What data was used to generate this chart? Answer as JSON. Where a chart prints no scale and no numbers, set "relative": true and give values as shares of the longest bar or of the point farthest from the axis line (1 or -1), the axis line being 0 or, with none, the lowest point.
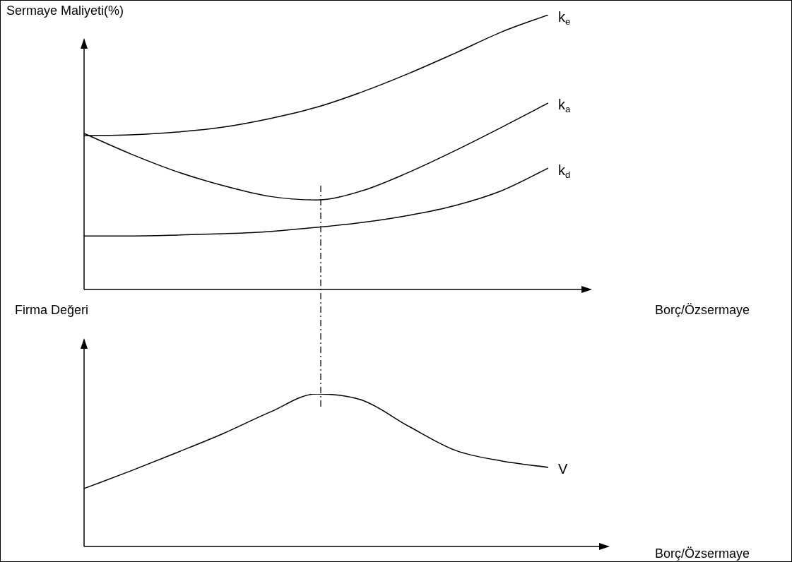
{
  "chart_data": [
    {
      "type": "line",
      "ylabel": "Sermaye Maliyeti(%)",
      "xlabel": "Borç/Özsermaye",
      "relative": true,
      "categories": [
        null,
        null,
        null,
        null,
        null,
        null,
        null,
        null,
        null,
        null,
        null
      ],
      "series": [
        {
          "name": "k$_{e}$",
          "color": "#000000",
          "values": [
            0.56,
            0.563,
            0.573,
            0.591,
            0.622,
            0.663,
            0.72,
            0.787,
            0.861,
            0.938,
            1
          ]
        },
        {
          "name": "k$_{a}$",
          "color": "#000000",
          "values": [
            0.568,
            0.494,
            0.429,
            0.378,
            0.339,
            0.326,
            0.36,
            0.427,
            0.506,
            0.591,
            0.679
          ]
        },
        {
          "name": "k$_{d}$",
          "color": "#000000",
          "values": [
            0.195,
            0.195,
            0.198,
            0.203,
            0.211,
            0.226,
            0.244,
            0.27,
            0.306,
            0.36,
            0.442
          ]
        }
      ],
      "legend": false,
      "marker": "none",
      "line_style": "solid"
    },
    {
      "type": "line",
      "ylabel": "Firma Değeri",
      "xlabel": "Borç/Özsermaye",
      "relative": true,
      "categories": [
        null,
        null,
        null,
        null,
        null,
        null,
        null,
        null,
        null,
        null,
        null
      ],
      "series": [
        {
          "name": "V",
          "color": "#000000",
          "values": [
            0.38,
            0.495,
            0.616,
            0.741,
            0.88,
            1,
            0.958,
            0.787,
            0.63,
            0.56,
            0.519
          ]
        }
      ],
      "legend": false,
      "marker": "none",
      "line_style": "solid"
    }
  ]
}
